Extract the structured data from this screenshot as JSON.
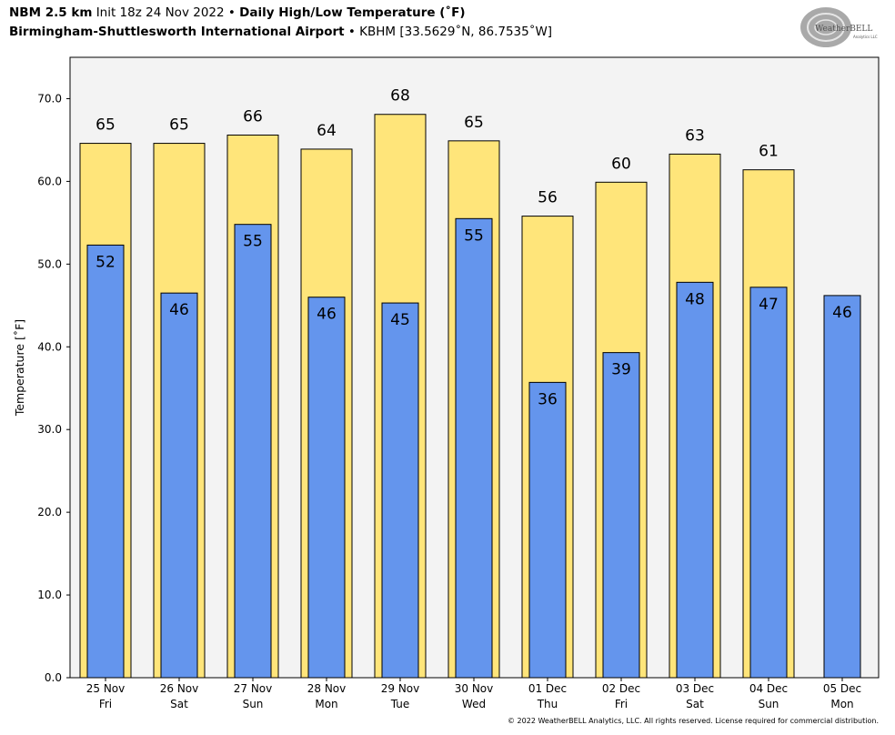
{
  "header": {
    "model": "NBM 2.5 km",
    "init": "Init 18z 24 Nov 2022",
    "bullet": "•",
    "product": "Daily High/Low Temperature (˚F)",
    "station_name": "Birmingham-Shuttlesworth International Airport",
    "station_info": "KBHM [33.5629˚N, 86.7535˚W]"
  },
  "logo": {
    "text": "WeatherBELL",
    "sub": "Analytics LLC"
  },
  "copyright": "© 2022 WeatherBELL Analytics, LLC. All rights reserved. License required for commercial distribution.",
  "colors": {
    "high": "#FFE57A",
    "low": "#6495ED",
    "plot_bg": "#F3F3F3"
  },
  "chart_data": {
    "type": "bar",
    "ylabel": "Temperature [˚F]",
    "ylim": [
      0,
      75
    ],
    "yticks": [
      0,
      10,
      20,
      30,
      40,
      50,
      60,
      70
    ],
    "ytick_labels": [
      "0.0",
      "10.0",
      "20.0",
      "30.0",
      "40.0",
      "50.0",
      "60.0",
      "70.0"
    ],
    "grid": false,
    "categories": [
      {
        "date": "25 Nov",
        "day": "Fri"
      },
      {
        "date": "26 Nov",
        "day": "Sat"
      },
      {
        "date": "27 Nov",
        "day": "Sun"
      },
      {
        "date": "28 Nov",
        "day": "Mon"
      },
      {
        "date": "29 Nov",
        "day": "Tue"
      },
      {
        "date": "30 Nov",
        "day": "Wed"
      },
      {
        "date": "01 Dec",
        "day": "Thu"
      },
      {
        "date": "02 Dec",
        "day": "Fri"
      },
      {
        "date": "03 Dec",
        "day": "Sat"
      },
      {
        "date": "04 Dec",
        "day": "Sun"
      },
      {
        "date": "05 Dec",
        "day": "Mon"
      }
    ],
    "high": {
      "values": [
        64.6,
        64.6,
        65.6,
        63.9,
        68.1,
        64.9,
        55.8,
        59.9,
        63.3,
        61.4,
        null
      ],
      "labels": [
        "65",
        "65",
        "66",
        "64",
        "68",
        "65",
        "56",
        "60",
        "63",
        "61",
        ""
      ]
    },
    "low": {
      "values": [
        52.3,
        46.5,
        54.8,
        46.0,
        45.3,
        55.5,
        35.7,
        39.3,
        47.8,
        47.2,
        46.2
      ],
      "labels": [
        "52",
        "46",
        "55",
        "46",
        "45",
        "55",
        "36",
        "39",
        "48",
        "47",
        "46"
      ]
    }
  }
}
